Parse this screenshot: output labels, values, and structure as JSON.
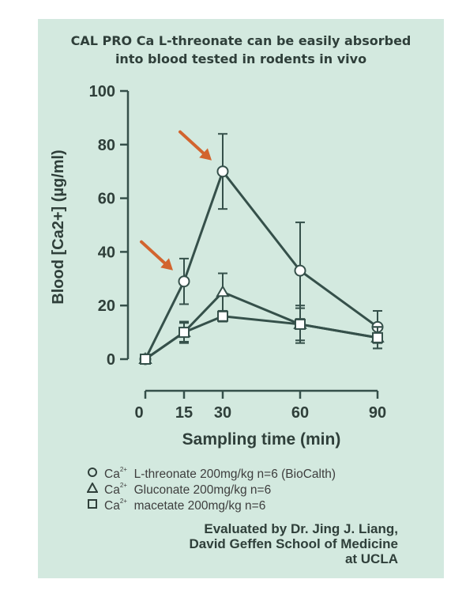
{
  "title_lines": [
    "CAL PRO Ca L-threonate can be easily absorbed",
    "into blood tested in rodents in vivo"
  ],
  "legend": [
    {
      "symbol": "circle",
      "prefix": "Ca",
      "sup": "2+",
      "text": "L-threonate 200mg/kg n=6 (BioCalth)"
    },
    {
      "symbol": "triangle",
      "prefix": "Ca",
      "sup": "2+",
      "text": "Gluconate 200mg/kg n=6"
    },
    {
      "symbol": "square",
      "prefix": "Ca",
      "sup": "2+",
      "text": "macetate 200mg/kg n=6"
    }
  ],
  "credit_lines": [
    "Evaluated by Dr. Jing J. Liang,",
    "David Geffen School of Medicine",
    "at UCLA"
  ],
  "colors": {
    "background": "#d3e9df",
    "line": "#35504a",
    "arrow": "#d2642e",
    "text": "#2f3f3a"
  },
  "chart_data": {
    "type": "line",
    "xlabel": "Sampling time (min)",
    "ylabel": "Blood [Ca2+] (µg/ml)",
    "xlim": [
      0,
      90
    ],
    "ylim": [
      0,
      100
    ],
    "x_ticks": [
      0,
      15,
      30,
      60,
      90
    ],
    "y_ticks": [
      0,
      20,
      40,
      60,
      80,
      100
    ],
    "x": [
      0,
      15,
      30,
      60,
      90
    ],
    "grid": false,
    "legend_position": "bottom",
    "series": [
      {
        "marker": "circle",
        "values": [
          0,
          29,
          70,
          33,
          12
        ],
        "error": [
          0,
          8.5,
          14,
          18,
          6
        ]
      },
      {
        "marker": "triangle",
        "values": [
          0,
          10,
          25,
          13,
          8
        ],
        "error": [
          0,
          3.5,
          7,
          6,
          4
        ]
      },
      {
        "marker": "square",
        "values": [
          0,
          10,
          16,
          13,
          8
        ],
        "error": [
          0,
          4,
          2,
          7,
          4
        ]
      }
    ],
    "arrows_at": [
      {
        "x": 15,
        "y": 29
      },
      {
        "x": 30,
        "y": 70
      }
    ]
  }
}
